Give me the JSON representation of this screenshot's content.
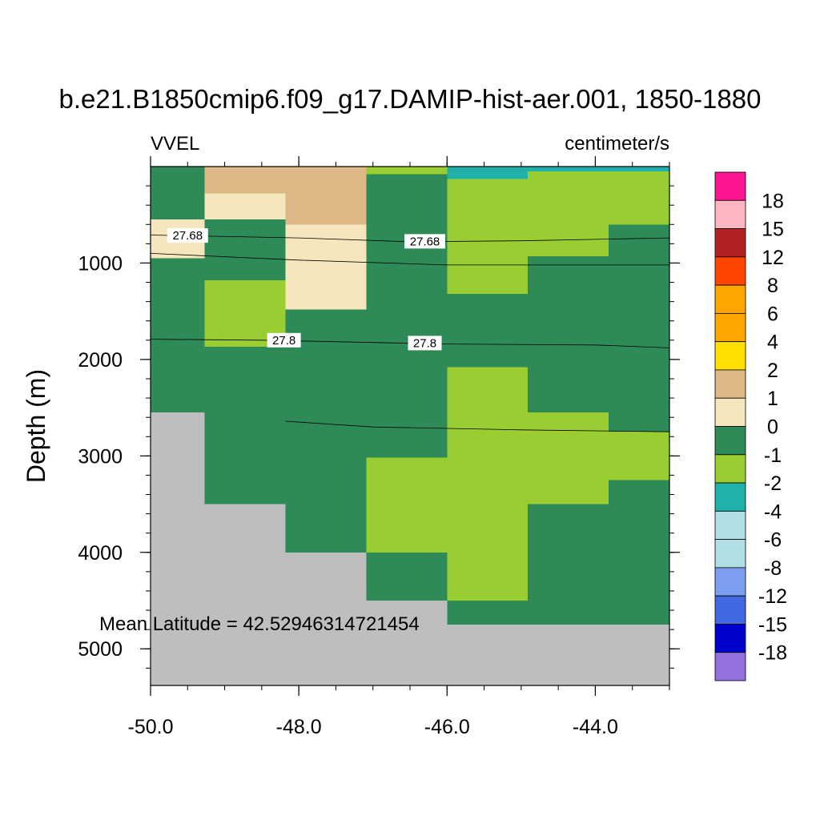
{
  "chart_data": {
    "type": "heatmap",
    "title": "b.e21.B1850cmip6.f09_g17.DAMIP-hist-aer.001, 1850-1880",
    "left_label": "VVEL",
    "right_label": "centimeter/s",
    "ylabel": "Depth (m)",
    "xlabel": "",
    "annotation": "Mean Latitude = 42.52946314721454",
    "xlim": [
      -50.0,
      -43.0
    ],
    "ylim": [
      0,
      5380
    ],
    "y_reversed": true,
    "x_ticks": [
      -50.0,
      -48.0,
      -46.0,
      -44.0
    ],
    "x_tick_labels": [
      "-50.0",
      "-48.0",
      "-46.0",
      "-44.0"
    ],
    "y_ticks": [
      1000,
      2000,
      3000,
      4000,
      5000
    ],
    "y_tick_labels": [
      "1000",
      "2000",
      "3000",
      "4000",
      "5000"
    ],
    "land_color": "#bebebe",
    "colorbar": {
      "labels": [
        "18",
        "15",
        "12",
        "8",
        "6",
        "4",
        "2",
        "1",
        "0",
        "-1",
        "-2",
        "-4",
        "-6",
        "-8",
        "-12",
        "-15",
        "-18"
      ],
      "colors": [
        "#ff1493",
        "#ffb6c1",
        "#b22222",
        "#ff4500",
        "#ffa500",
        "#ffa500",
        "#ffe000",
        "#deb887",
        "#f5e6be",
        "#2e8b57",
        "#9acd32",
        "#20b2aa",
        "#b0e0e6",
        "#b0e0e6",
        "#7b9ef0",
        "#4169e1",
        "#0000cd",
        "#9370db"
      ]
    },
    "cells": [
      {
        "x0": -50.0,
        "x1": -43.0,
        "y0": 0,
        "y1": 2550,
        "value": "0"
      },
      {
        "x0": -49.27,
        "x1": -43.0,
        "y0": 2550,
        "y1": 3500,
        "value": "0"
      },
      {
        "x0": -48.18,
        "x1": -43.0,
        "y0": 3500,
        "y1": 4000,
        "value": "0"
      },
      {
        "x0": -47.09,
        "x1": -43.0,
        "y0": 4000,
        "y1": 4500,
        "value": "0"
      },
      {
        "x0": -46.0,
        "x1": -43.0,
        "y0": 4500,
        "y1": 4750,
        "value": "0"
      },
      {
        "x0": -50.0,
        "x1": -49.27,
        "y0": 550,
        "y1": 950,
        "value": "1"
      },
      {
        "x0": -49.27,
        "x1": -48.18,
        "y0": 280,
        "y1": 550,
        "value": "1"
      },
      {
        "x0": -48.18,
        "x1": -47.09,
        "y0": 600,
        "y1": 1480,
        "value": "1"
      },
      {
        "x0": -49.27,
        "x1": -48.18,
        "y0": 0,
        "y1": 280,
        "value": "2"
      },
      {
        "x0": -48.18,
        "x1": -47.09,
        "y0": 0,
        "y1": 600,
        "value": "2"
      },
      {
        "x0": -47.09,
        "x1": -46.0,
        "y0": 0,
        "y1": 80,
        "value": "-1"
      },
      {
        "x0": -46.0,
        "x1": -44.91,
        "y0": 130,
        "y1": 1320,
        "value": "-1"
      },
      {
        "x0": -44.91,
        "x1": -43.82,
        "y0": 50,
        "y1": 930,
        "value": "-1"
      },
      {
        "x0": -43.82,
        "x1": -43.0,
        "y0": 50,
        "y1": 600,
        "value": "-1"
      },
      {
        "x0": -49.27,
        "x1": -48.18,
        "y0": 1180,
        "y1": 1870,
        "value": "-1"
      },
      {
        "x0": -46.0,
        "x1": -44.91,
        "y0": 2080,
        "y1": 4500,
        "value": "-1"
      },
      {
        "x0": -44.91,
        "x1": -43.82,
        "y0": 2550,
        "y1": 3500,
        "value": "-1"
      },
      {
        "x0": -43.82,
        "x1": -43.0,
        "y0": 2750,
        "y1": 3250,
        "value": "-1"
      },
      {
        "x0": -47.09,
        "x1": -46.0,
        "y0": 3020,
        "y1": 4000,
        "value": "-1"
      },
      {
        "x0": -46.0,
        "x1": -44.91,
        "y0": 0,
        "y1": 130,
        "value": "-2"
      },
      {
        "x0": -44.91,
        "x1": -43.0,
        "y0": 0,
        "y1": 50,
        "value": "-2"
      },
      {
        "x0": -50.0,
        "x1": -49.27,
        "y0": 2550,
        "y1": 5380,
        "value": "land"
      },
      {
        "x0": -49.27,
        "x1": -48.18,
        "y0": 3500,
        "y1": 5380,
        "value": "land"
      },
      {
        "x0": -48.18,
        "x1": -47.09,
        "y0": 4000,
        "y1": 5380,
        "value": "land"
      },
      {
        "x0": -47.09,
        "x1": -46.0,
        "y0": 4500,
        "y1": 5380,
        "value": "land"
      },
      {
        "x0": -46.0,
        "x1": -43.0,
        "y0": 4750,
        "y1": 5380,
        "value": "land"
      }
    ],
    "contours": [
      {
        "label": "27.68",
        "points": [
          [
            -50.0,
            710
          ],
          [
            -48.0,
            740
          ],
          [
            -46.5,
            780
          ],
          [
            -45.0,
            770
          ],
          [
            -43.0,
            740
          ]
        ],
        "label_at": [
          [
            -49.5,
            715
          ],
          [
            -46.3,
            775
          ]
        ]
      },
      {
        "label": "",
        "points": [
          [
            -50.0,
            900
          ],
          [
            -48.0,
            970
          ],
          [
            -46.0,
            1020
          ],
          [
            -44.0,
            1020
          ],
          [
            -43.0,
            1020
          ]
        ],
        "label_at": []
      },
      {
        "label": "27.8",
        "points": [
          [
            -50.0,
            1790
          ],
          [
            -48.5,
            1800
          ],
          [
            -46.0,
            1840
          ],
          [
            -44.0,
            1850
          ],
          [
            -43.0,
            1880
          ]
        ],
        "label_at": [
          [
            -48.2,
            1800
          ],
          [
            -46.3,
            1830
          ]
        ]
      },
      {
        "label": "",
        "points": [
          [
            -48.18,
            2640
          ],
          [
            -47.0,
            2700
          ],
          [
            -45.0,
            2730
          ],
          [
            -43.0,
            2750
          ]
        ],
        "label_at": []
      }
    ]
  }
}
